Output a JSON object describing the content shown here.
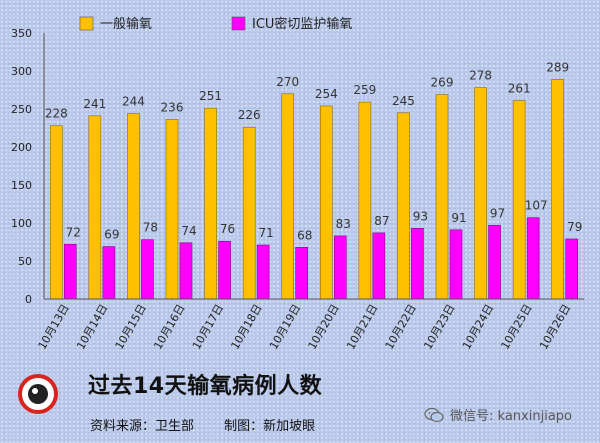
{
  "chart_data": {
    "type": "bar",
    "categories": [
      "10月13日",
      "10月14日",
      "10月15日",
      "10月16日",
      "10月17日",
      "10月18日",
      "10月19日",
      "10月20日",
      "10月21日",
      "10月22日",
      "10月23日",
      "10月24日",
      "10月25日",
      "10月26日"
    ],
    "series": [
      {
        "name": "一般输氧",
        "color": "#ffc000",
        "values": [
          228,
          241,
          244,
          236,
          251,
          226,
          270,
          254,
          259,
          245,
          269,
          278,
          261,
          289
        ]
      },
      {
        "name": "ICU密切监护输氧",
        "color": "#ff00ff",
        "values": [
          72,
          69,
          78,
          74,
          76,
          71,
          68,
          83,
          87,
          93,
          91,
          97,
          107,
          79
        ]
      }
    ],
    "ylim": [
      0,
      350
    ],
    "yticks": [
      0,
      50,
      100,
      150,
      200,
      250,
      300,
      350
    ],
    "grid": false,
    "legend_position": "top",
    "title": "过去14天输氧病例人数"
  },
  "footer": {
    "title": "过去14天输氧病例人数",
    "source": "资料来源：卫生部",
    "made_by": "制图：新加坡眼",
    "logo_text": "新加坡眼",
    "wechat": "微信号: kanxinjiapo"
  }
}
